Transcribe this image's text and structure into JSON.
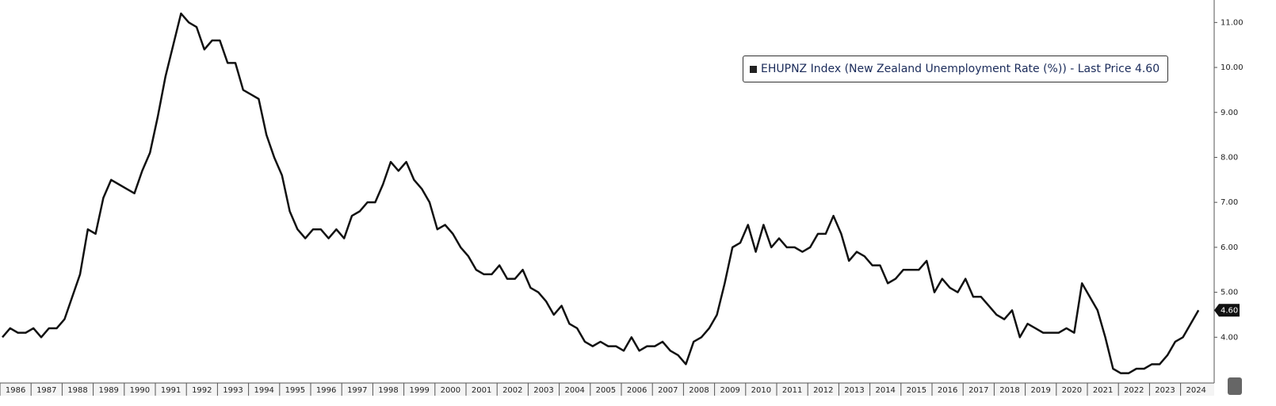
{
  "chart_data": {
    "type": "line",
    "xticks": [
      "1986",
      "1987",
      "1988",
      "1989",
      "1990",
      "1991",
      "1992",
      "1993",
      "1994",
      "1995",
      "1996",
      "1997",
      "1998",
      "1999",
      "2000",
      "2001",
      "2002",
      "2003",
      "2004",
      "2005",
      "2006",
      "2007",
      "2008",
      "2009",
      "2010",
      "2011",
      "2012",
      "2013",
      "2014",
      "2015",
      "2016",
      "2017",
      "2018",
      "2019",
      "2020",
      "2021",
      "2022",
      "2023",
      "2024"
    ],
    "series": [
      {
        "name": "EHUPNZ Index (New Zealand Unemployment Rate (%)) - Last Price 4.60",
        "color": "#111111",
        "values": [
          4.0,
          4.2,
          4.1,
          4.1,
          4.2,
          4.0,
          4.2,
          4.2,
          4.4,
          4.9,
          5.4,
          6.4,
          6.3,
          7.1,
          7.5,
          7.4,
          7.3,
          7.2,
          7.7,
          8.1,
          8.9,
          9.8,
          10.5,
          11.2,
          11.0,
          10.9,
          10.4,
          10.6,
          10.6,
          10.1,
          10.1,
          9.5,
          9.4,
          9.3,
          8.5,
          8.0,
          7.6,
          6.8,
          6.4,
          6.2,
          6.4,
          6.4,
          6.2,
          6.4,
          6.2,
          6.7,
          6.8,
          7.0,
          7.0,
          7.4,
          7.9,
          7.7,
          7.9,
          7.5,
          7.3,
          7.0,
          6.4,
          6.5,
          6.3,
          6.0,
          5.8,
          5.5,
          5.4,
          5.4,
          5.6,
          5.3,
          5.3,
          5.5,
          5.1,
          5.0,
          4.8,
          4.5,
          4.7,
          4.3,
          4.2,
          3.9,
          3.8,
          3.9,
          3.8,
          3.8,
          3.7,
          4.0,
          3.7,
          3.8,
          3.8,
          3.9,
          3.7,
          3.6,
          3.4,
          3.9,
          4.0,
          4.2,
          4.5,
          5.2,
          6.0,
          6.1,
          6.5,
          5.9,
          6.5,
          6.0,
          6.2,
          6.0,
          6.0,
          5.9,
          6.0,
          6.3,
          6.3,
          6.7,
          6.3,
          5.7,
          5.9,
          5.8,
          5.6,
          5.6,
          5.2,
          5.3,
          5.5,
          5.5,
          5.5,
          5.7,
          5.0,
          5.3,
          5.1,
          5.0,
          5.3,
          4.9,
          4.9,
          4.7,
          4.5,
          4.4,
          4.6,
          4.0,
          4.3,
          4.2,
          4.1,
          4.1,
          4.1,
          4.2,
          4.1,
          5.2,
          4.9,
          4.6,
          4.0,
          3.3,
          3.2,
          3.2,
          3.3,
          3.3,
          3.4,
          3.4,
          3.6,
          3.9,
          4.0,
          4.3,
          4.6
        ],
        "last_value_label": "4.60"
      }
    ],
    "ylim": [
      3.0,
      11.5
    ],
    "yticks": [
      {
        "value": 4,
        "label": "4.00"
      },
      {
        "value": 5,
        "label": "5.00"
      },
      {
        "value": 6,
        "label": "6.00"
      },
      {
        "value": 7,
        "label": "7.00"
      },
      {
        "value": 8,
        "label": "8.00"
      },
      {
        "value": 9,
        "label": "9.00"
      },
      {
        "value": 10,
        "label": "10.00"
      },
      {
        "value": 11,
        "label": "11.00"
      }
    ],
    "grid": false
  }
}
